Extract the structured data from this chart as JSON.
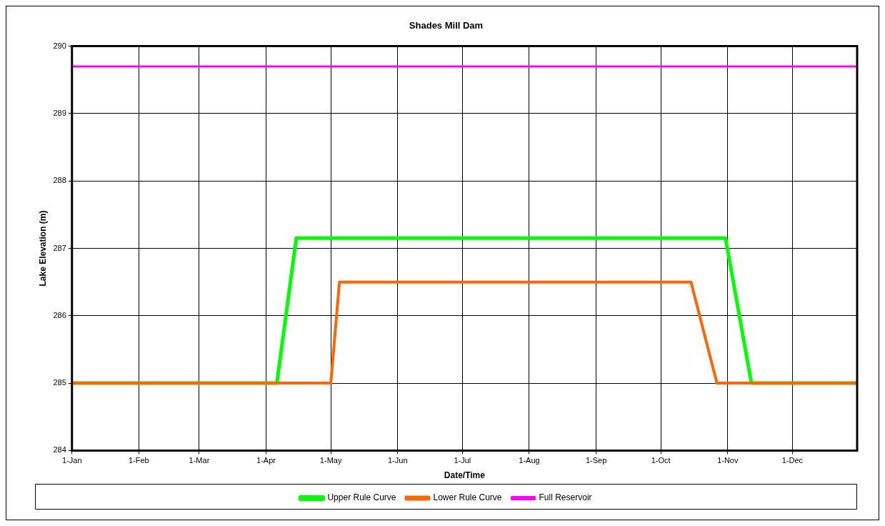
{
  "chart_data": {
    "type": "line",
    "title": "Shades Mill Dam",
    "xlabel": "Date/Time",
    "ylabel": "Lake Elevation (m)",
    "xlim": [
      "--01-01",
      "--12-31"
    ],
    "xticks": [
      {
        "value": "--01-01",
        "label": "1-Jan"
      },
      {
        "value": "--02-01",
        "label": "1-Feb"
      },
      {
        "value": "--03-01",
        "label": "1-Mar"
      },
      {
        "value": "--04-01",
        "label": "1-Apr"
      },
      {
        "value": "--05-01",
        "label": "1-May"
      },
      {
        "value": "--06-01",
        "label": "1-Jun"
      },
      {
        "value": "--07-01",
        "label": "1-Jul"
      },
      {
        "value": "--08-01",
        "label": "1-Aug"
      },
      {
        "value": "--09-01",
        "label": "1-Sep"
      },
      {
        "value": "--10-01",
        "label": "1-Oct"
      },
      {
        "value": "--11-01",
        "label": "1-Nov"
      },
      {
        "value": "--12-01",
        "label": "1-Dec"
      }
    ],
    "ylim": [
      284,
      290
    ],
    "yticks": [
      284,
      285,
      286,
      287,
      288,
      289,
      290
    ],
    "grid": true,
    "legend": "bottom",
    "series": [
      {
        "name": "Upper Rule Curve",
        "color": "#00ff00",
        "x": [
          "--01-01",
          "--04-06",
          "--04-15",
          "--10-31",
          "--11-12",
          "--12-31"
        ],
        "values": [
          285,
          285,
          287.15,
          287.15,
          285,
          285
        ]
      },
      {
        "name": "Lower Rule Curve",
        "color": "#ff6600",
        "x": [
          "--01-01",
          "--05-01",
          "--05-05",
          "--10-15",
          "--10-27",
          "--12-31"
        ],
        "values": [
          285,
          285,
          286.5,
          286.5,
          285,
          285
        ]
      },
      {
        "name": "Full Reservoir",
        "color": "#ff00ff",
        "x": [
          "--01-01",
          "--12-31"
        ],
        "values": [
          289.7,
          289.7
        ]
      }
    ]
  }
}
